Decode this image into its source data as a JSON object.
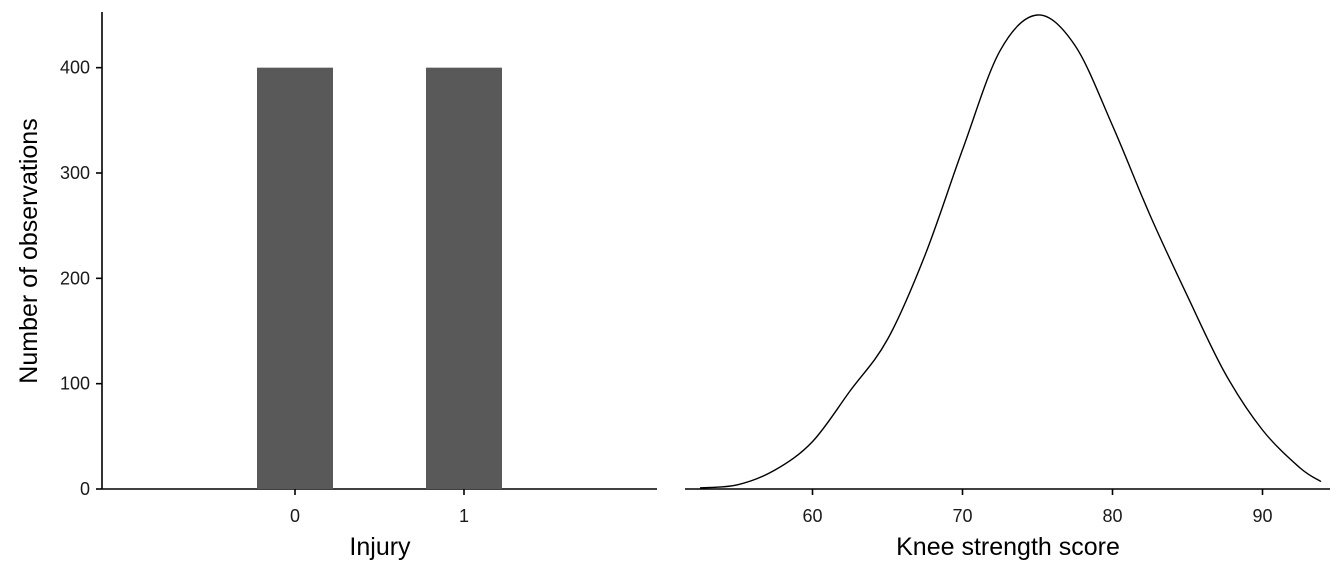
{
  "chart_data": [
    {
      "type": "bar",
      "categories": [
        "0",
        "1"
      ],
      "values": [
        400,
        400
      ],
      "xlabel": "Injury",
      "ylabel": "Number of observations",
      "ylim": [
        0,
        450
      ],
      "yticks": [
        0,
        100,
        200,
        300,
        400
      ],
      "bar_color": "#595959",
      "grid": false
    },
    {
      "type": "line",
      "xlabel": "Knee strength score",
      "ylabel": "",
      "xlim": [
        51.5,
        94.5
      ],
      "ylim": [
        0,
        450
      ],
      "xticks": [
        60,
        70,
        80,
        90
      ],
      "x": [
        52.5,
        55,
        57.5,
        60,
        62.5,
        65,
        67.5,
        70,
        72.5,
        75,
        77.5,
        80,
        82.5,
        85,
        87.5,
        90,
        92.5,
        93.9
      ],
      "y": [
        1,
        4,
        18,
        45,
        93,
        142,
        222,
        322,
        416,
        450,
        421,
        345,
        260,
        183,
        110,
        56,
        20,
        7
      ],
      "line_color": "#000000",
      "grid": false
    }
  ]
}
